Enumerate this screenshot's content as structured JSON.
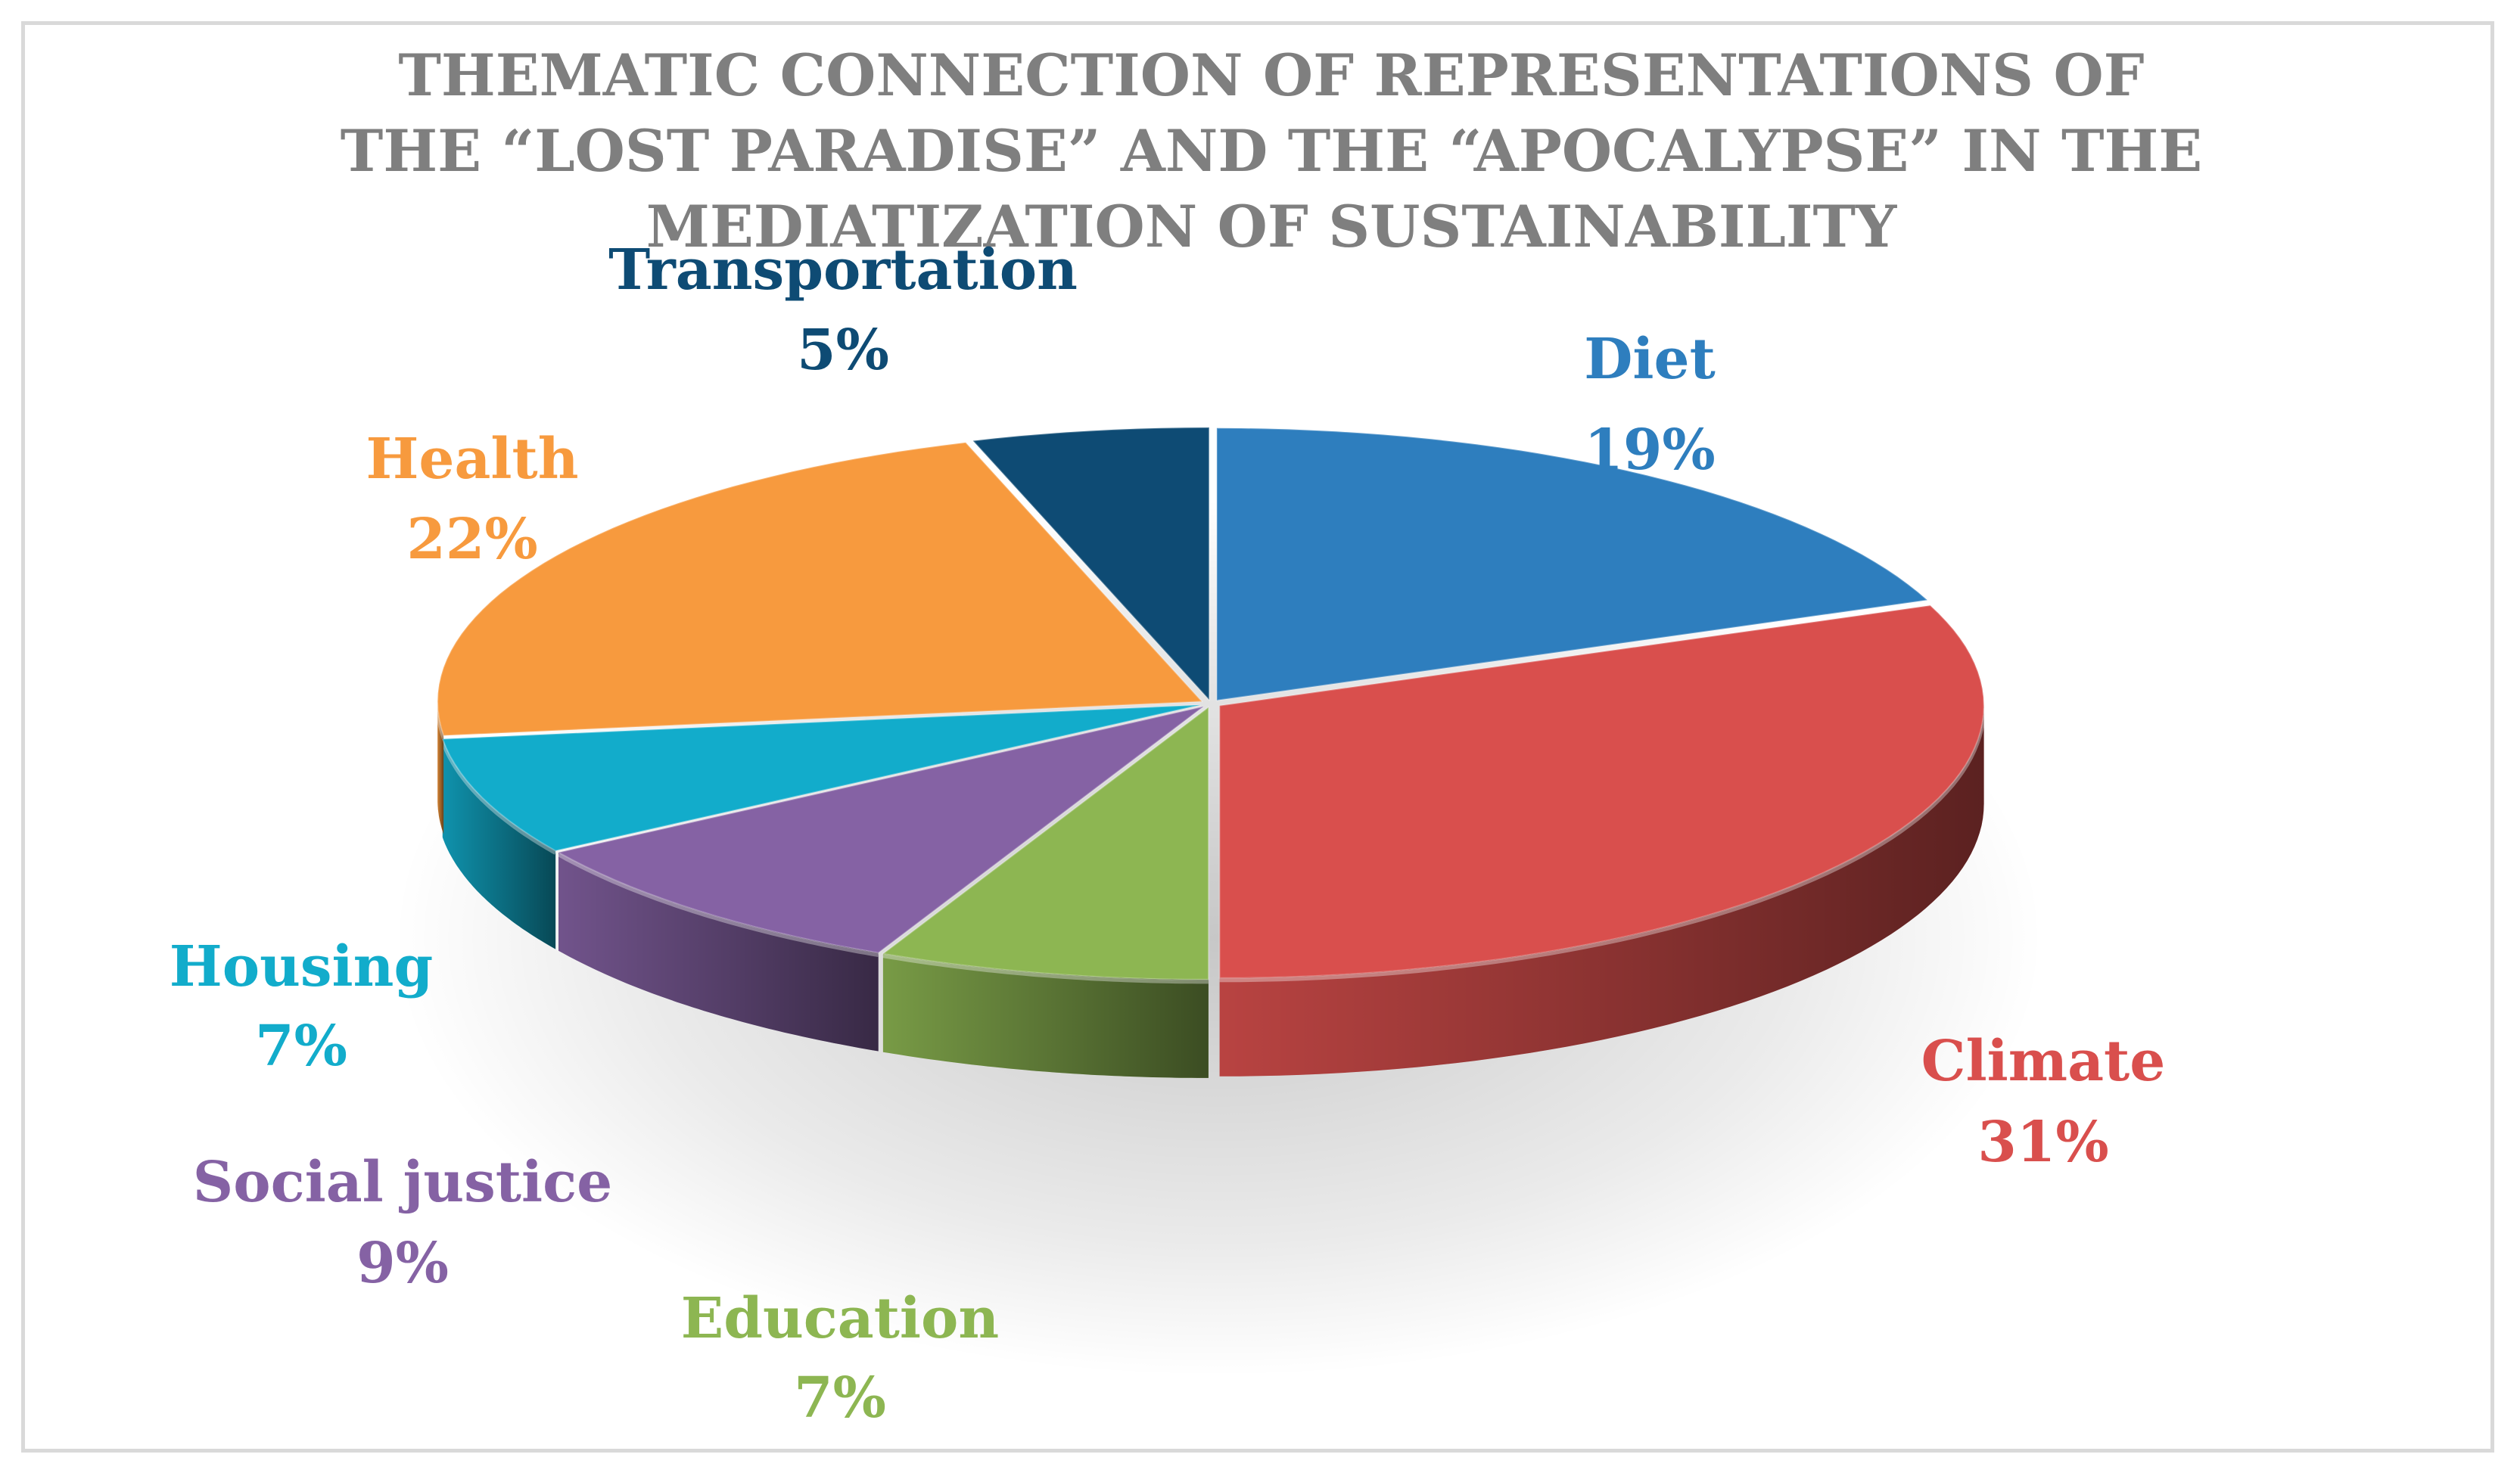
{
  "chart_data": {
    "type": "pie",
    "title": "THEMATIC CONNECTION OF REPRESENTATIONS OF THE “LOST PARADISE” AND THE “APOCALYPSE” IN THE MEDIATIZATION OF SUSTAINABILITY",
    "style": "3d-exploded-tilted",
    "start": "12 o'clock",
    "direction": "clockwise",
    "legend": "none",
    "data_labels": "category name and percentage, outside slices",
    "slices": [
      {
        "label": "Diet",
        "value": 19,
        "value_label": "19%",
        "color": "#2E7EBE"
      },
      {
        "label": "Climate",
        "value": 31,
        "value_label": "31%",
        "color": "#D94F4D"
      },
      {
        "label": "Education",
        "value": 7,
        "value_label": "7%",
        "color": "#8DB652"
      },
      {
        "label": "Social justice",
        "value": 9,
        "value_label": "9%",
        "color": "#8562A4"
      },
      {
        "label": "Housing",
        "value": 7,
        "value_label": "7%",
        "color": "#12ACCB"
      },
      {
        "label": "Health",
        "value": 22,
        "value_label": "22%",
        "color": "#F79A3E"
      },
      {
        "label": "Transportation",
        "value": 5,
        "value_label": "5%",
        "color": "#0E4B74"
      }
    ]
  }
}
